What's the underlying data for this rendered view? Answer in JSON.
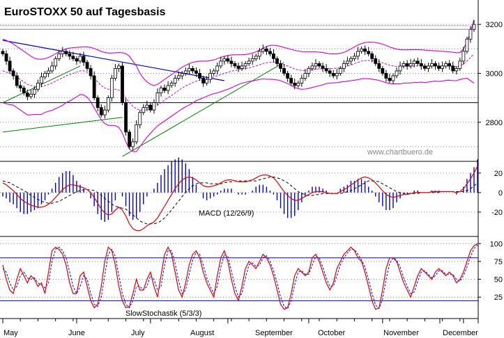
{
  "chart_data": [
    {
      "type": "candlestick",
      "title": "EuroSTOXX 50 auf Tagesbasis",
      "watermark": "www.chartbuero.de",
      "ylim": [
        2640,
        3300
      ],
      "yticks": [
        2800,
        3000,
        3200
      ],
      "months": [
        "May",
        "June",
        "July",
        "August",
        "September",
        "October",
        "November",
        "December"
      ],
      "close": [
        3080,
        3050,
        3010,
        2990,
        2950,
        2940,
        2920,
        2905,
        2915,
        2935,
        2960,
        2985,
        3000,
        3010,
        3030,
        3060,
        3080,
        3090,
        3080,
        3070,
        3060,
        3050,
        3070,
        3045,
        3020,
        2990,
        2900,
        2860,
        2830,
        2850,
        2900,
        2980,
        3020,
        3030,
        2880,
        2760,
        2700,
        2720,
        2790,
        2840,
        2860,
        2870,
        2850,
        2880,
        2920,
        2940,
        2930,
        2950,
        2960,
        2980,
        2990,
        3000,
        3010,
        3020,
        3010,
        3000,
        2980,
        2960,
        2975,
        3000,
        3010,
        3030,
        3050,
        3060,
        3050,
        3040,
        3030,
        3020,
        3030,
        3040,
        3050,
        3060,
        3070,
        3090,
        3100,
        3090,
        3080,
        3060,
        3040,
        3020,
        3000,
        2980,
        2960,
        2950,
        2960,
        2980,
        3000,
        3020,
        3030,
        3040,
        3030,
        3020,
        3010,
        3000,
        2990,
        3000,
        3020,
        3040,
        3050,
        3060,
        3070,
        3090,
        3100,
        3090,
        3080,
        3060,
        3040,
        3020,
        3000,
        2980,
        2970,
        2990,
        3010,
        3030,
        3040,
        3030,
        3040,
        3050,
        3040,
        3030,
        3020,
        3030,
        3040,
        3030,
        3020,
        3030,
        3040,
        3030,
        3010,
        3020,
        3050,
        3090,
        3140,
        3180,
        3200
      ],
      "ma": [
        3010,
        3005,
        3000,
        2995,
        2985,
        2975,
        2965,
        2955,
        2950,
        2947,
        2945,
        2945,
        2950,
        2955,
        2960,
        2968,
        2975,
        2982,
        2990,
        2995,
        3000,
        3005,
        3010,
        3010,
        3005,
        2995,
        2980,
        2965,
        2950,
        2940,
        2935,
        2935,
        2935,
        2932,
        2920,
        2900,
        2880,
        2865,
        2855,
        2850,
        2850,
        2852,
        2855,
        2860,
        2870,
        2880,
        2890,
        2900,
        2910,
        2920,
        2930,
        2940,
        2948,
        2955,
        2962,
        2968,
        2972,
        2975,
        2978,
        2982,
        2986,
        2990,
        2995,
        3000,
        3004,
        3008,
        3012,
        3015,
        3018,
        3020,
        3023,
        3026,
        3030,
        3035,
        3040,
        3043,
        3045,
        3045,
        3043,
        3040,
        3035,
        3030,
        3024,
        3018,
        3014,
        3012,
        3012,
        3013,
        3015,
        3017,
        3018,
        3019,
        3020,
        3020,
        3020,
        3021,
        3023,
        3026,
        3030,
        3035,
        3040,
        3045,
        3050,
        3052,
        3053,
        3052,
        3050,
        3047,
        3043,
        3038,
        3033,
        3030,
        3028,
        3027,
        3028,
        3028,
        3029,
        3030,
        3030,
        3030,
        3029,
        3029,
        3030,
        3030,
        3029,
        3029,
        3030,
        3030,
        3028,
        3027,
        3030,
        3038,
        3050,
        3065,
        3080
      ],
      "bb_upper": [
        3140,
        3135,
        3128,
        3120,
        3110,
        3100,
        3090,
        3080,
        3070,
        3062,
        3058,
        3058,
        3060,
        3065,
        3072,
        3080,
        3088,
        3095,
        3100,
        3103,
        3105,
        3106,
        3107,
        3108,
        3108,
        3106,
        3102,
        3096,
        3090,
        3085,
        3083,
        3083,
        3084,
        3085,
        3084,
        3080,
        3070,
        3050,
        3030,
        3000,
        2980,
        2965,
        2955,
        2950,
        2955,
        2965,
        2975,
        2985,
        2995,
        3005,
        3015,
        3025,
        3033,
        3040,
        3045,
        3048,
        3050,
        3050,
        3050,
        3052,
        3055,
        3060,
        3065,
        3070,
        3073,
        3075,
        3076,
        3076,
        3076,
        3077,
        3079,
        3083,
        3088,
        3095,
        3103,
        3110,
        3114,
        3115,
        3113,
        3110,
        3106,
        3102,
        3098,
        3094,
        3091,
        3089,
        3088,
        3088,
        3088,
        3088,
        3087,
        3085,
        3082,
        3080,
        3079,
        3080,
        3082,
        3086,
        3092,
        3100,
        3108,
        3116,
        3122,
        3126,
        3128,
        3128,
        3126,
        3123,
        3119,
        3114,
        3108,
        3103,
        3099,
        3097,
        3096,
        3096,
        3097,
        3097,
        3097,
        3096,
        3095,
        3094,
        3093,
        3092,
        3091,
        3090,
        3089,
        3088,
        3086,
        3084,
        3085,
        3100,
        3130,
        3170,
        3220
      ],
      "bb_lower": [
        2880,
        2875,
        2872,
        2870,
        2860,
        2850,
        2840,
        2830,
        2830,
        2832,
        2832,
        2832,
        2840,
        2845,
        2848,
        2856,
        2862,
        2869,
        2880,
        2887,
        2895,
        2904,
        2913,
        2912,
        2902,
        2884,
        2858,
        2834,
        2810,
        2795,
        2787,
        2787,
        2786,
        2779,
        2756,
        2720,
        2690,
        2680,
        2680,
        2700,
        2720,
        2739,
        2755,
        2770,
        2785,
        2795,
        2805,
        2815,
        2825,
        2835,
        2845,
        2855,
        2863,
        2870,
        2879,
        2888,
        2894,
        2900,
        2906,
        2912,
        2917,
        2920,
        2925,
        2930,
        2935,
        2941,
        2948,
        2954,
        2960,
        2963,
        2967,
        2969,
        2972,
        2975,
        2977,
        2976,
        2976,
        2975,
        2973,
        2970,
        2964,
        2958,
        2950,
        2942,
        2937,
        2935,
        2936,
        2938,
        2942,
        2946,
        2949,
        2953,
        2958,
        2960,
        2961,
        2962,
        2964,
        2966,
        2968,
        2970,
        2972,
        2974,
        2978,
        2978,
        2978,
        2976,
        2974,
        2971,
        2967,
        2962,
        2958,
        2957,
        2957,
        2957,
        2960,
        2960,
        2961,
        2963,
        2963,
        2964,
        2963,
        2964,
        2967,
        2968,
        2967,
        2968,
        2971,
        2972,
        2970,
        2970,
        2975,
        2978,
        2980,
        2970,
        2960
      ]
    },
    {
      "type": "macd",
      "label": "MACD (12/26/9)",
      "ylim": [
        -45,
        32
      ],
      "yticks": [
        -20,
        0,
        20
      ],
      "macd": [
        10,
        8,
        5,
        2,
        -2,
        -6,
        -9,
        -11,
        -13,
        -14,
        -15,
        -15,
        -14,
        -12,
        -9,
        -5,
        -1,
        3,
        6,
        8,
        8,
        7,
        6,
        5,
        3,
        0,
        -5,
        -11,
        -17,
        -21,
        -23,
        -22,
        -18,
        -15,
        -18,
        -24,
        -32,
        -37,
        -39,
        -39,
        -37,
        -34,
        -32,
        -30,
        -26,
        -20,
        -14,
        -8,
        -2,
        4,
        9,
        13,
        15,
        16,
        15,
        13,
        10,
        7,
        6,
        6,
        7,
        8,
        10,
        12,
        13,
        13,
        12,
        11,
        11,
        11,
        12,
        13,
        15,
        17,
        18,
        18,
        17,
        15,
        11,
        6,
        1,
        -3,
        -6,
        -8,
        -8,
        -6,
        -4,
        -2,
        0,
        1,
        1,
        1,
        0,
        -1,
        -1,
        -1,
        1,
        3,
        5,
        8,
        10,
        13,
        15,
        16,
        15,
        13,
        10,
        6,
        2,
        -2,
        -4,
        -5,
        -4,
        -3,
        -2,
        -2,
        -1,
        0,
        0,
        0,
        0,
        0,
        1,
        1,
        1,
        1,
        1,
        1,
        1,
        0,
        1,
        4,
        9,
        14,
        20,
        27
      ],
      "signal": [
        12,
        11,
        10,
        8,
        6,
        4,
        2,
        0,
        -3,
        -5,
        -7,
        -9,
        -10,
        -11,
        -11,
        -10,
        -9,
        -7,
        -5,
        -3,
        -1,
        1,
        2,
        3,
        3,
        3,
        2,
        0,
        -3,
        -6,
        -9,
        -12,
        -14,
        -15,
        -16,
        -17,
        -20,
        -23,
        -26,
        -29,
        -31,
        -32,
        -32,
        -32,
        -31,
        -29,
        -26,
        -22,
        -18,
        -13,
        -9,
        -4,
        0,
        4,
        7,
        9,
        10,
        10,
        10,
        9,
        9,
        9,
        9,
        10,
        11,
        11,
        12,
        12,
        12,
        12,
        12,
        12,
        12,
        13,
        14,
        15,
        16,
        16,
        15,
        14,
        12,
        10,
        7,
        4,
        1,
        -1,
        -2,
        -3,
        -3,
        -2,
        -2,
        -1,
        -1,
        -1,
        -1,
        -1,
        -1,
        0,
        1,
        2,
        4,
        6,
        8,
        10,
        12,
        12,
        12,
        11,
        9,
        7,
        5,
        3,
        1,
        0,
        -1,
        -1,
        -1,
        -1,
        -1,
        0,
        0,
        0,
        0,
        0,
        0,
        1,
        1,
        1,
        1,
        1,
        1,
        1,
        2,
        4,
        7,
        10
      ]
    },
    {
      "type": "stochastic",
      "label": "SlowStochastik (5/3/3)",
      "ylim": [
        -5,
        110
      ],
      "yticks": [
        25,
        50,
        75,
        100
      ],
      "lines": [
        80,
        20
      ],
      "k": [
        70,
        50,
        35,
        30,
        50,
        65,
        55,
        45,
        55,
        50,
        40,
        45,
        30,
        60,
        90,
        95,
        92,
        85,
        70,
        45,
        30,
        30,
        55,
        60,
        40,
        20,
        10,
        15,
        40,
        75,
        95,
        90,
        70,
        40,
        20,
        10,
        12,
        30,
        50,
        35,
        35,
        50,
        60,
        40,
        25,
        55,
        85,
        95,
        85,
        60,
        35,
        25,
        45,
        70,
        85,
        90,
        80,
        60,
        45,
        35,
        25,
        55,
        80,
        90,
        75,
        50,
        30,
        20,
        40,
        65,
        75,
        70,
        65,
        75,
        85,
        80,
        70,
        55,
        35,
        15,
        8,
        10,
        30,
        55,
        65,
        60,
        55,
        60,
        80,
        85,
        75,
        60,
        45,
        35,
        45,
        65,
        75,
        85,
        90,
        95,
        90,
        80,
        75,
        60,
        40,
        20,
        8,
        10,
        35,
        65,
        80,
        80,
        75,
        60,
        45,
        35,
        25,
        40,
        55,
        65,
        60,
        55,
        50,
        60,
        65,
        60,
        55,
        60,
        55,
        45,
        50,
        60,
        75,
        90,
        97,
        100
      ],
      "d": [
        65,
        60,
        45,
        35,
        40,
        55,
        60,
        52,
        50,
        52,
        45,
        42,
        38,
        45,
        75,
        92,
        95,
        90,
        80,
        60,
        40,
        30,
        40,
        55,
        50,
        30,
        15,
        12,
        25,
        55,
        85,
        92,
        82,
        55,
        30,
        15,
        10,
        20,
        40,
        40,
        35,
        40,
        55,
        50,
        35,
        40,
        70,
        90,
        90,
        72,
        48,
        30,
        35,
        57,
        77,
        88,
        85,
        70,
        52,
        40,
        30,
        40,
        67,
        85,
        82,
        62,
        40,
        25,
        30,
        52,
        70,
        73,
        68,
        70,
        80,
        83,
        75,
        62,
        45,
        25,
        12,
        9,
        20,
        42,
        60,
        62,
        57,
        57,
        70,
        82,
        80,
        67,
        52,
        40,
        40,
        55,
        70,
        80,
        87,
        92,
        92,
        85,
        77,
        67,
        50,
        30,
        14,
        9,
        22,
        50,
        72,
        80,
        77,
        67,
        52,
        40,
        30,
        32,
        47,
        60,
        62,
        57,
        52,
        55,
        62,
        62,
        57,
        57,
        57,
        50,
        47,
        55,
        67,
        82,
        93,
        98
      ]
    }
  ]
}
